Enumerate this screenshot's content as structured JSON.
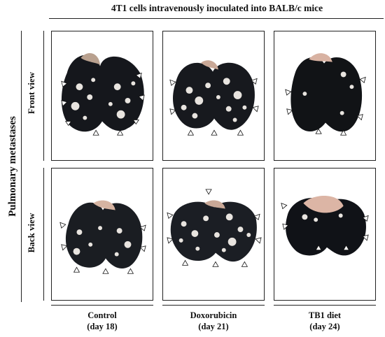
{
  "header": {
    "title": "4T1 cells intravenously inoculated into BALB/c mice"
  },
  "side": {
    "main_label": "Pulmonary metastases",
    "rows": [
      {
        "label": "Front view"
      },
      {
        "label": "Back view"
      }
    ]
  },
  "columns": [
    {
      "name": "Control",
      "day": "(day 18)"
    },
    {
      "name": "Doxorubicin",
      "day": "(day 21)"
    },
    {
      "name": "TB1 diet",
      "day": "(day 24)"
    }
  ],
  "panels": [
    {
      "row": "front",
      "column": "control",
      "picture": "lung-photograph"
    },
    {
      "row": "front",
      "column": "doxorubicin",
      "picture": "lung-photograph"
    },
    {
      "row": "front",
      "column": "tb1-diet",
      "picture": "lung-photograph"
    },
    {
      "row": "back",
      "column": "control",
      "picture": "lung-photograph"
    },
    {
      "row": "back",
      "column": "doxorubicin",
      "picture": "lung-photograph"
    },
    {
      "row": "back",
      "column": "tb1-diet",
      "picture": "lung-photograph"
    }
  ],
  "colors": {
    "lung_dark": "#15171c",
    "lung_tissue": "#d9b0a0",
    "nodule": "#e8e4df",
    "line": "#222222"
  }
}
